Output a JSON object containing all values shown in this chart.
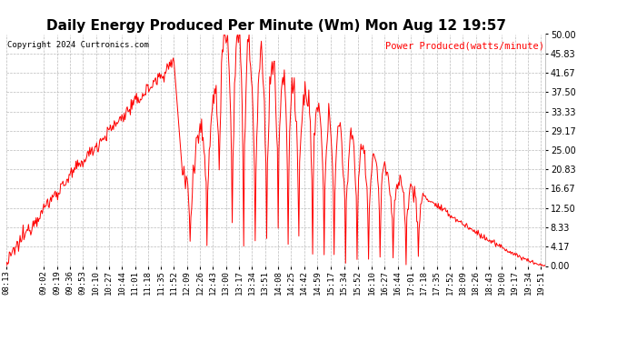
{
  "title": "Daily Energy Produced Per Minute (Wm) Mon Aug 12 19:57",
  "copyright": "Copyright 2024 Curtronics.com",
  "legend_label": "Power Produced(watts/minute)",
  "line_color": "red",
  "background_color": "#ffffff",
  "grid_color": "#aaaaaa",
  "ymin": 0.0,
  "ymax": 50.0,
  "yticks": [
    0.0,
    4.17,
    8.33,
    12.5,
    16.67,
    20.83,
    25.0,
    29.17,
    33.33,
    37.5,
    41.67,
    45.83,
    50.0
  ],
  "xtick_labels": [
    "08:13",
    "09:02",
    "09:19",
    "09:36",
    "09:53",
    "10:10",
    "10:27",
    "10:44",
    "11:01",
    "11:18",
    "11:35",
    "11:52",
    "12:09",
    "12:26",
    "12:43",
    "13:00",
    "13:17",
    "13:34",
    "13:51",
    "14:08",
    "14:25",
    "14:42",
    "14:59",
    "15:17",
    "15:34",
    "15:52",
    "16:10",
    "16:27",
    "16:44",
    "17:01",
    "17:18",
    "17:35",
    "17:52",
    "18:09",
    "18:26",
    "18:43",
    "19:00",
    "19:17",
    "19:34",
    "19:51"
  ],
  "title_fontsize": 11,
  "axis_fontsize": 6.5,
  "copyright_fontsize": 6.5,
  "legend_fontsize": 7.5
}
